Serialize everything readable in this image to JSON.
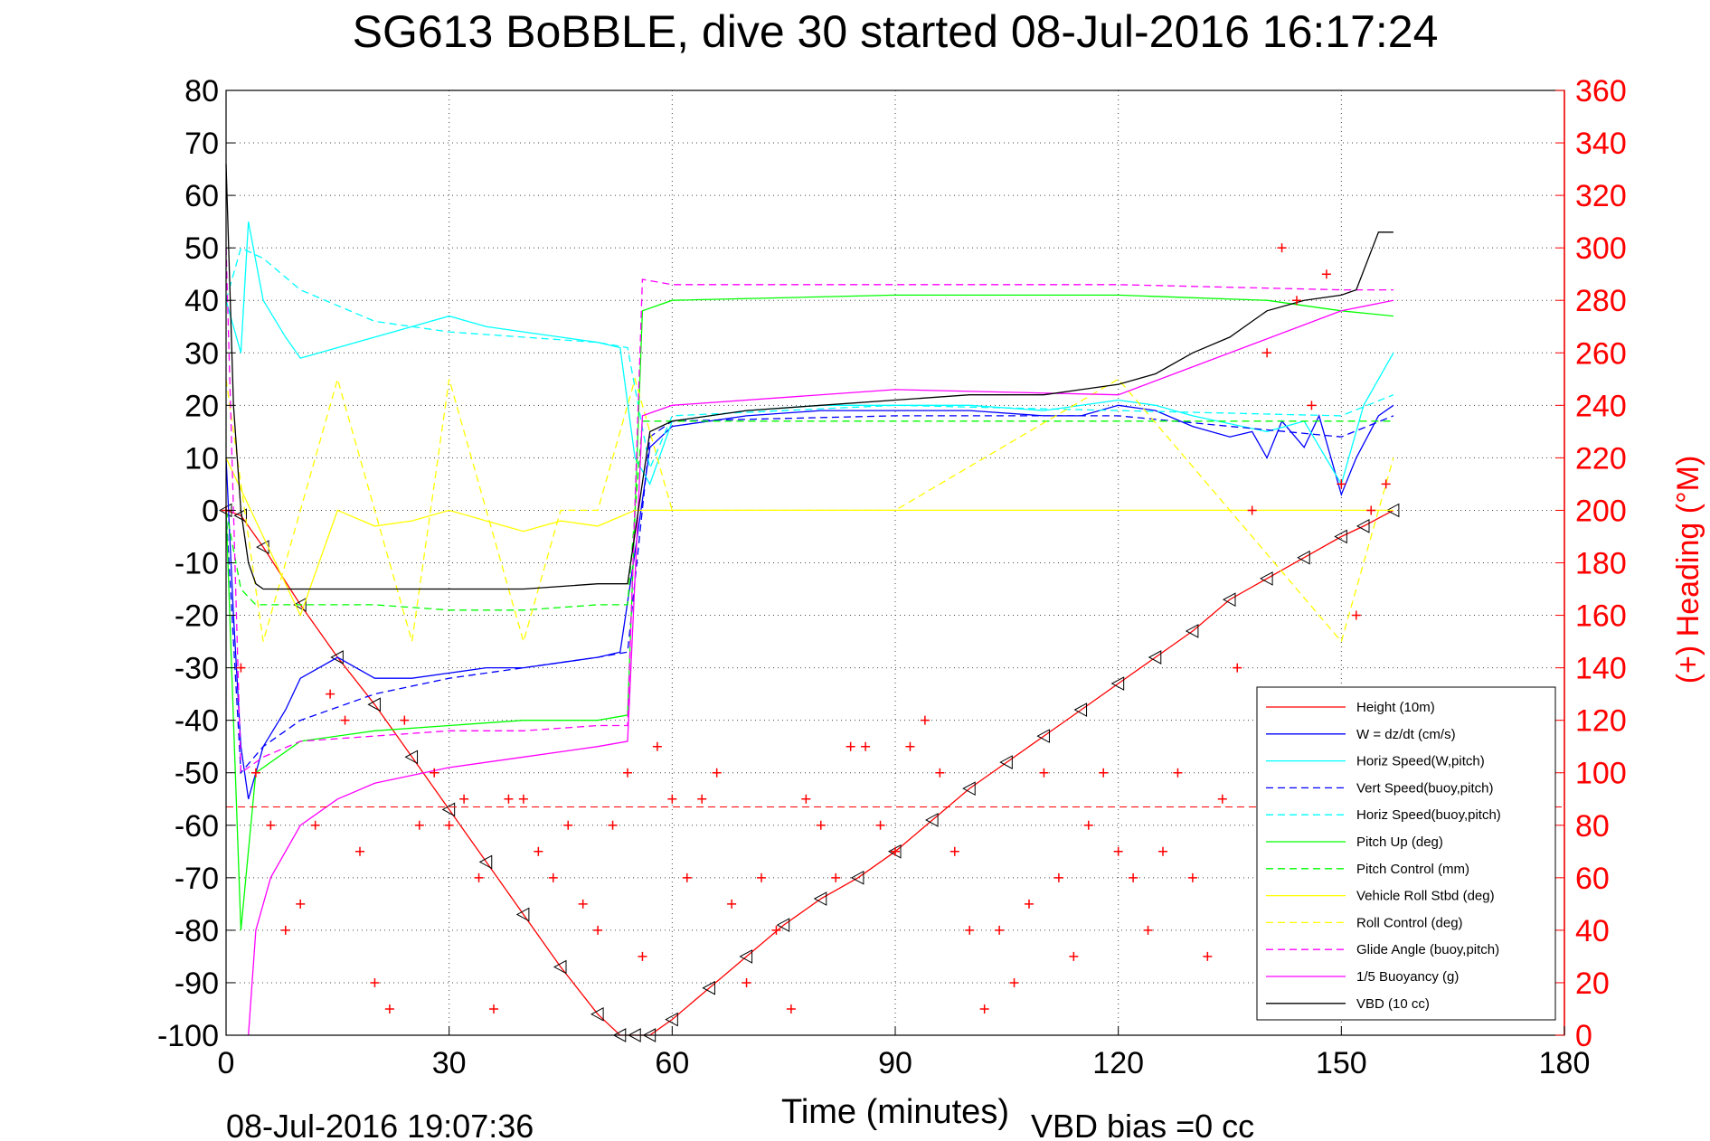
{
  "chart_data": {
    "type": "line",
    "title": "SG613 BoBBLE, dive 30 started 08-Jul-2016 16:17:24",
    "xlabel": "Time (minutes)",
    "ylabel_right": "(+) Heading (°M)",
    "footer_left": "08-Jul-2016 19:07:36",
    "footer_right": "VBD bias =0 cc",
    "xlim": [
      0,
      180
    ],
    "ylim": [
      -100,
      80
    ],
    "y2lim": [
      0,
      360
    ],
    "xticks": [
      0,
      30,
      60,
      90,
      120,
      150,
      180
    ],
    "yticks": [
      80,
      70,
      60,
      50,
      40,
      30,
      20,
      10,
      0,
      -10,
      -20,
      -30,
      -40,
      -50,
      -60,
      -70,
      -80,
      -90,
      -100
    ],
    "y2ticks": [
      360,
      340,
      320,
      300,
      280,
      260,
      240,
      220,
      200,
      180,
      160,
      140,
      120,
      100,
      80,
      60,
      40,
      20,
      0
    ],
    "grid": true,
    "legend_position": "bottom-right",
    "colors": {
      "axis_right": "#ff0000"
    },
    "series": [
      {
        "name": "Height (10m)",
        "color": "#ff0000",
        "style": "solid",
        "marker": "triangle",
        "x": [
          0,
          2,
          5,
          10,
          15,
          20,
          25,
          30,
          35,
          40,
          45,
          50,
          53,
          55,
          57,
          60,
          65,
          70,
          75,
          80,
          85,
          90,
          95,
          100,
          105,
          110,
          115,
          120,
          125,
          130,
          135,
          140,
          145,
          150,
          153,
          157
        ],
        "y": [
          0,
          -1,
          -7,
          -18,
          -28,
          -37,
          -47,
          -57,
          -67,
          -77,
          -87,
          -96,
          -100,
          -100,
          -100,
          -97,
          -91,
          -85,
          -79,
          -74,
          -70,
          -65,
          -59,
          -53,
          -48,
          -43,
          -38,
          -33,
          -28,
          -23,
          -17,
          -13,
          -9,
          -5,
          -3,
          0
        ]
      },
      {
        "name": "W = dz/dt (cm/s)",
        "color": "#0000ff",
        "style": "solid",
        "x": [
          0,
          1,
          2,
          3,
          5,
          8,
          10,
          15,
          20,
          25,
          30,
          35,
          40,
          45,
          50,
          53,
          55,
          57,
          60,
          65,
          70,
          80,
          90,
          100,
          110,
          115,
          120,
          125,
          130,
          135,
          138,
          140,
          142,
          145,
          147,
          150,
          152,
          155,
          157
        ],
        "y": [
          10,
          -20,
          -45,
          -55,
          -45,
          -38,
          -32,
          -28,
          -32,
          -32,
          -31,
          -30,
          -30,
          -29,
          -28,
          -27,
          -8,
          12,
          16,
          17,
          18,
          19,
          19,
          19,
          18,
          18,
          20,
          19,
          16,
          14,
          15,
          10,
          17,
          12,
          18,
          3,
          10,
          18,
          20
        ]
      },
      {
        "name": "Horiz Speed(W,pitch)",
        "color": "#00ffff",
        "style": "solid",
        "x": [
          0,
          2,
          3,
          5,
          8,
          10,
          15,
          20,
          25,
          30,
          35,
          40,
          45,
          50,
          53,
          55,
          57,
          60,
          70,
          80,
          90,
          100,
          110,
          120,
          125,
          130,
          140,
          145,
          150,
          153,
          157
        ],
        "y": [
          40,
          30,
          55,
          40,
          33,
          29,
          31,
          33,
          35,
          37,
          35,
          34,
          33,
          32,
          31,
          10,
          5,
          17,
          19,
          20,
          20,
          20,
          19,
          21,
          20,
          18,
          15,
          17,
          5,
          20,
          30
        ]
      },
      {
        "name": "Vert Speed(buoy,pitch)",
        "color": "#0000ff",
        "style": "dashed",
        "x": [
          0,
          2,
          5,
          10,
          20,
          30,
          40,
          50,
          54,
          57,
          60,
          90,
          120,
          150,
          157
        ],
        "y": [
          0,
          -50,
          -45,
          -40,
          -35,
          -32,
          -30,
          -28,
          -27,
          14,
          17,
          18,
          18,
          14,
          18
        ]
      },
      {
        "name": "Horiz Speed(buoy,pitch)",
        "color": "#00ffff",
        "style": "dashed",
        "x": [
          0,
          2,
          5,
          10,
          20,
          30,
          40,
          50,
          54,
          57,
          60,
          90,
          120,
          150,
          157
        ],
        "y": [
          40,
          50,
          48,
          42,
          36,
          34,
          33,
          32,
          31,
          8,
          18,
          20,
          19,
          18,
          22
        ]
      },
      {
        "name": "Pitch Up (deg)",
        "color": "#00ff00",
        "style": "solid",
        "x": [
          0,
          2,
          4,
          10,
          20,
          30,
          40,
          50,
          54,
          56,
          60,
          90,
          120,
          140,
          150,
          157
        ],
        "y": [
          0,
          -80,
          -50,
          -44,
          -42,
          -41,
          -40,
          -40,
          -39,
          38,
          40,
          41,
          41,
          40,
          38,
          37
        ]
      },
      {
        "name": "Pitch Control (mm)",
        "color": "#00ff00",
        "style": "dashed",
        "x": [
          0,
          2,
          4,
          10,
          20,
          30,
          40,
          50,
          54,
          56,
          60,
          90,
          120,
          150,
          157
        ],
        "y": [
          0,
          -15,
          -18,
          -18,
          -18,
          -19,
          -19,
          -18,
          -18,
          17,
          17,
          17,
          17,
          17,
          17
        ]
      },
      {
        "name": "Vehicle Roll Stbd (deg)",
        "color": "#ffff00",
        "style": "solid",
        "x": [
          0,
          5,
          10,
          15,
          20,
          25,
          30,
          35,
          40,
          45,
          50,
          55,
          60,
          90,
          120,
          150,
          157
        ],
        "y": [
          10,
          -5,
          -20,
          0,
          -3,
          -2,
          0,
          -2,
          -4,
          -2,
          -3,
          0,
          0,
          0,
          0,
          0,
          0
        ]
      },
      {
        "name": "Roll Control (deg)",
        "color": "#ffff00",
        "style": "dashed",
        "x": [
          0,
          5,
          10,
          15,
          20,
          25,
          30,
          35,
          40,
          45,
          50,
          55,
          60,
          90,
          120,
          150,
          157
        ],
        "y": [
          25,
          -25,
          0,
          25,
          0,
          -25,
          25,
          0,
          -25,
          0,
          0,
          25,
          0,
          0,
          25,
          -25,
          10
        ]
      },
      {
        "name": "Glide Angle (buoy,pitch)",
        "color": "#ff00ff",
        "style": "dashed",
        "x": [
          0,
          2,
          5,
          10,
          20,
          30,
          40,
          50,
          54,
          56,
          60,
          90,
          120,
          150,
          157
        ],
        "y": [
          50,
          -50,
          -47,
          -44,
          -43,
          -42,
          -42,
          -41,
          -41,
          44,
          43,
          43,
          43,
          42,
          42
        ]
      },
      {
        "name": "1/5 Buoyancy (g)",
        "color": "#ff00ff",
        "style": "solid",
        "x": [
          3,
          4,
          6,
          10,
          15,
          20,
          30,
          40,
          50,
          54,
          56,
          60,
          90,
          120,
          150,
          157
        ],
        "y": [
          -100,
          -80,
          -70,
          -60,
          -55,
          -52,
          -49,
          -47,
          -45,
          -44,
          18,
          20,
          23,
          22,
          38,
          40
        ]
      },
      {
        "name": "VBD (10 cc)",
        "color": "#000000",
        "style": "solid",
        "x": [
          0,
          1,
          2,
          3,
          4,
          5,
          10,
          20,
          30,
          40,
          50,
          54,
          57,
          60,
          70,
          80,
          90,
          100,
          110,
          115,
          120,
          125,
          130,
          135,
          138,
          140,
          145,
          150,
          152,
          155,
          157
        ],
        "y": [
          66,
          20,
          0,
          -10,
          -14,
          -15,
          -15,
          -15,
          -15,
          -15,
          -14,
          -14,
          15,
          17,
          19,
          20,
          21,
          22,
          22,
          23,
          24,
          26,
          30,
          33,
          36,
          38,
          40,
          41,
          42,
          53,
          53
        ]
      },
      {
        "name": "Heading (°M)",
        "axis": "right",
        "color": "#ff0000",
        "style": "marker",
        "marker": "+",
        "x": [
          0,
          2,
          4,
          6,
          8,
          10,
          12,
          14,
          16,
          18,
          20,
          22,
          24,
          26,
          28,
          30,
          32,
          34,
          36,
          38,
          40,
          42,
          44,
          46,
          48,
          50,
          52,
          54,
          56,
          58,
          60,
          62,
          64,
          66,
          68,
          70,
          72,
          74,
          76,
          78,
          80,
          82,
          84,
          86,
          88,
          90,
          92,
          94,
          96,
          98,
          100,
          102,
          104,
          106,
          108,
          110,
          112,
          114,
          116,
          118,
          120,
          122,
          124,
          126,
          128,
          130,
          132,
          134,
          136,
          138,
          140,
          142,
          144,
          146,
          148,
          150,
          152,
          154,
          156
        ],
        "y": [
          200,
          140,
          100,
          80,
          40,
          50,
          80,
          130,
          120,
          70,
          20,
          10,
          120,
          80,
          100,
          80,
          90,
          60,
          10,
          90,
          90,
          70,
          60,
          80,
          50,
          40,
          80,
          100,
          30,
          110,
          90,
          60,
          90,
          100,
          50,
          20,
          60,
          40,
          10,
          90,
          80,
          60,
          110,
          110,
          80,
          70,
          110,
          120,
          100,
          70,
          40,
          10,
          40,
          20,
          50,
          100,
          60,
          30,
          80,
          100,
          70,
          60,
          40,
          70,
          100,
          60,
          30,
          90,
          140,
          200,
          260,
          300,
          280,
          240,
          290,
          210,
          160,
          200,
          210
        ]
      }
    ]
  }
}
